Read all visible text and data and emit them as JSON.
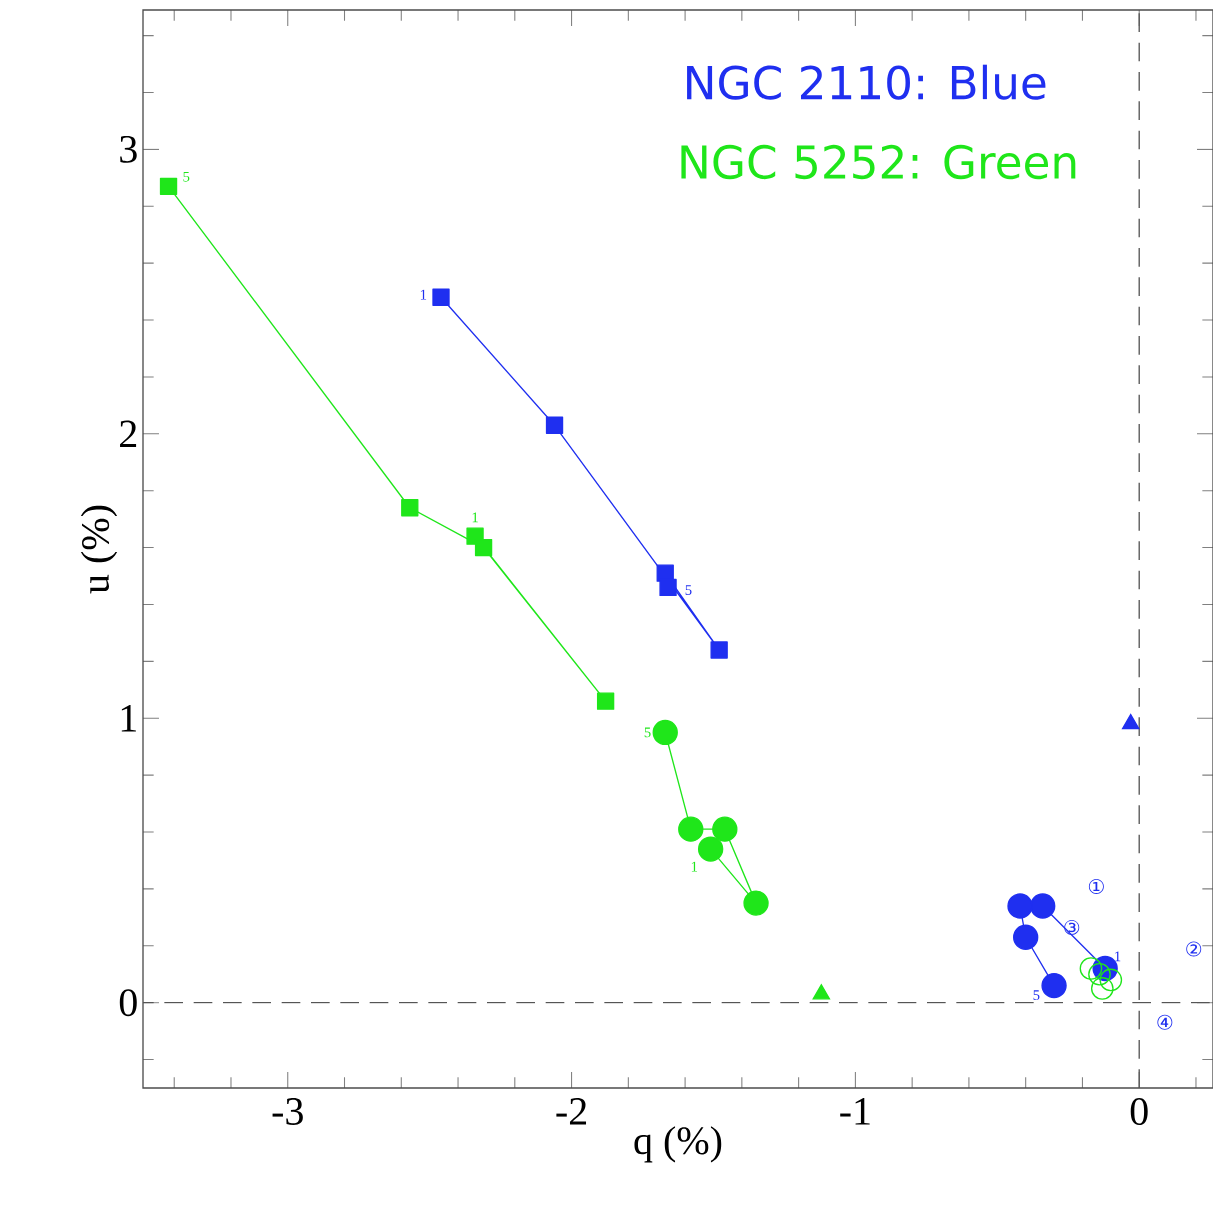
{
  "chart_data": {
    "type": "line",
    "xlabel": "q (%)",
    "ylabel": "u (%)",
    "xlim": [
      -3.51,
      0.26
    ],
    "ylim": [
      -0.3,
      3.49
    ],
    "xticks": [
      {
        "value": -3.4,
        "label": null
      },
      {
        "value": -3.2,
        "label": null
      },
      -3,
      {
        "value": -2.8,
        "label": null
      },
      {
        "value": -2.6,
        "label": null
      },
      {
        "value": -2.4,
        "label": null
      },
      {
        "value": -2.2,
        "label": null
      },
      -2,
      {
        "value": -1.8,
        "label": null
      },
      {
        "value": -1.6,
        "label": null
      },
      {
        "value": -1.4,
        "label": null
      },
      {
        "value": -1.2,
        "label": null
      },
      -1,
      {
        "value": -0.8,
        "label": null
      },
      {
        "value": -0.6,
        "label": null
      },
      {
        "value": -0.4,
        "label": null
      },
      {
        "value": -0.2,
        "label": null
      },
      0,
      {
        "value": 0.2,
        "label": null
      }
    ],
    "yticks": [
      {
        "value": -0.2,
        "label": null
      },
      0,
      {
        "value": 0.2,
        "label": null
      },
      {
        "value": 0.4,
        "label": null
      },
      {
        "value": 0.6,
        "label": null
      },
      {
        "value": 0.8,
        "label": null
      },
      1,
      {
        "value": 1.2,
        "label": null
      },
      {
        "value": 1.4,
        "label": null
      },
      {
        "value": 1.6,
        "label": null
      },
      {
        "value": 1.8,
        "label": null
      },
      2,
      {
        "value": 2.2,
        "label": null
      },
      {
        "value": 2.4,
        "label": null
      },
      {
        "value": 2.6,
        "label": null
      },
      {
        "value": 2.8,
        "label": null
      },
      3,
      {
        "value": 3.2,
        "label": null
      },
      {
        "value": 3.4,
        "label": null
      }
    ],
    "grid": false,
    "series": [
      {
        "marker": "square",
        "color": "#1f2ff0",
        "x": [
          -2.46,
          -2.06,
          -1.48,
          -1.67,
          -1.66
        ],
        "values": [
          2.48,
          2.03,
          1.24,
          1.51,
          1.46
        ]
      },
      {
        "marker": "square",
        "color": "#1fe61a",
        "x": [
          -2.34,
          -1.88,
          -2.31,
          -2.57,
          -3.42
        ],
        "values": [
          1.64,
          1.06,
          1.6,
          1.74,
          2.87
        ]
      },
      {
        "marker": "circle",
        "color": "#1fe61a",
        "x": [
          -1.51,
          -1.35,
          -1.46,
          -1.58,
          -1.67
        ],
        "values": [
          0.54,
          0.35,
          0.61,
          0.61,
          0.95
        ]
      },
      {
        "marker": "circle",
        "color": "#1f2ff0",
        "x": [
          -0.12,
          -0.34,
          -0.42,
          -0.4,
          -0.3
        ],
        "values": [
          0.12,
          0.34,
          0.34,
          0.23,
          0.06
        ]
      },
      {
        "type": "scatter",
        "marker": "open circle",
        "color": "#1fe61a",
        "x": [
          -0.17,
          -0.14,
          -0.1,
          -0.13
        ],
        "values": [
          0.12,
          0.1,
          0.08,
          0.05
        ]
      },
      {
        "type": "scatter",
        "marker": "triangle",
        "color": "#1f2ff0",
        "x": [
          -0.03
        ],
        "values": [
          0.98
        ]
      },
      {
        "type": "scatter",
        "marker": "triangle",
        "color": "#1fe61a",
        "x": [
          -1.12
        ],
        "values": [
          0.03
        ]
      }
    ],
    "ref_lines": [
      {
        "axis": "x",
        "value": 0,
        "line_style": "dashed",
        "color": "#555555"
      },
      {
        "axis": "y",
        "value": 0,
        "line_style": "dashed",
        "color": "#555555"
      }
    ],
    "annotations": [
      "NGC 2110: Blue",
      "NGC 5252: Green",
      {
        "text": "1",
        "x": -2.46,
        "y": 2.48
      },
      {
        "text": "5",
        "x": -1.66,
        "y": 1.46
      },
      {
        "text": "5",
        "x": -3.42,
        "y": 2.87
      },
      {
        "text": "1",
        "x": -2.34,
        "y": 1.64
      },
      {
        "text": "5",
        "x": -1.67,
        "y": 0.95
      },
      {
        "text": "1",
        "x": -1.51,
        "y": 0.54
      },
      {
        "text": "1",
        "x": -0.12,
        "y": 0.12
      },
      {
        "text": "5",
        "x": -0.3,
        "y": 0.06
      },
      "①",
      "②",
      "③",
      "④"
    ]
  }
}
